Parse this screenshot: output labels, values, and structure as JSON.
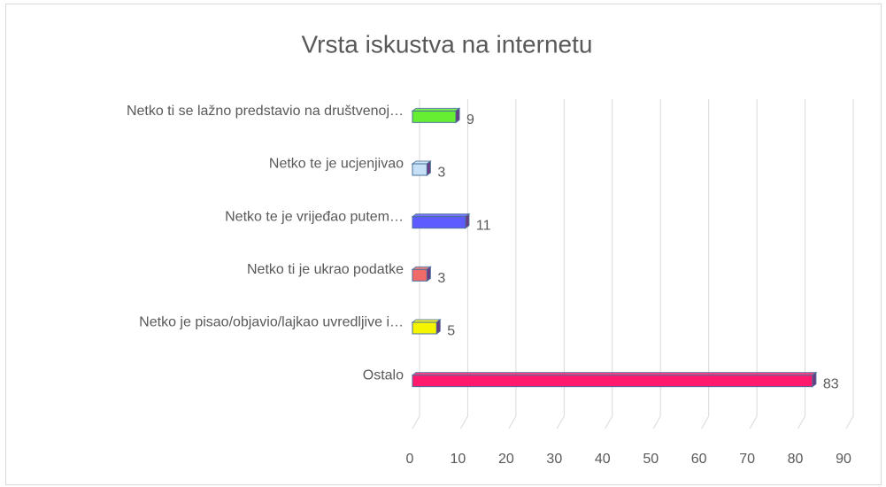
{
  "chart_data": {
    "type": "bar",
    "orientation": "horizontal",
    "title": "Vrsta iskustva na internetu",
    "categories": [
      "Netko ti se lažno predstavio na društvenoj…",
      "Netko te je ucjenjivao",
      "Netko te je vrijeđao putem…",
      "Netko ti je ukrao podatke",
      "Netko je pisao/objavio/lajkao uvredljive i…",
      "Ostalo"
    ],
    "values": [
      9,
      3,
      11,
      3,
      5,
      83
    ],
    "colors": [
      "#66ee33",
      "#c5e0f7",
      "#5c5cff",
      "#f06a6a",
      "#f5f500",
      "#ff1a6e"
    ],
    "xlim": [
      0,
      90
    ],
    "xticks": [
      0,
      10,
      20,
      30,
      40,
      50,
      60,
      70,
      80,
      90
    ],
    "grid": true
  }
}
